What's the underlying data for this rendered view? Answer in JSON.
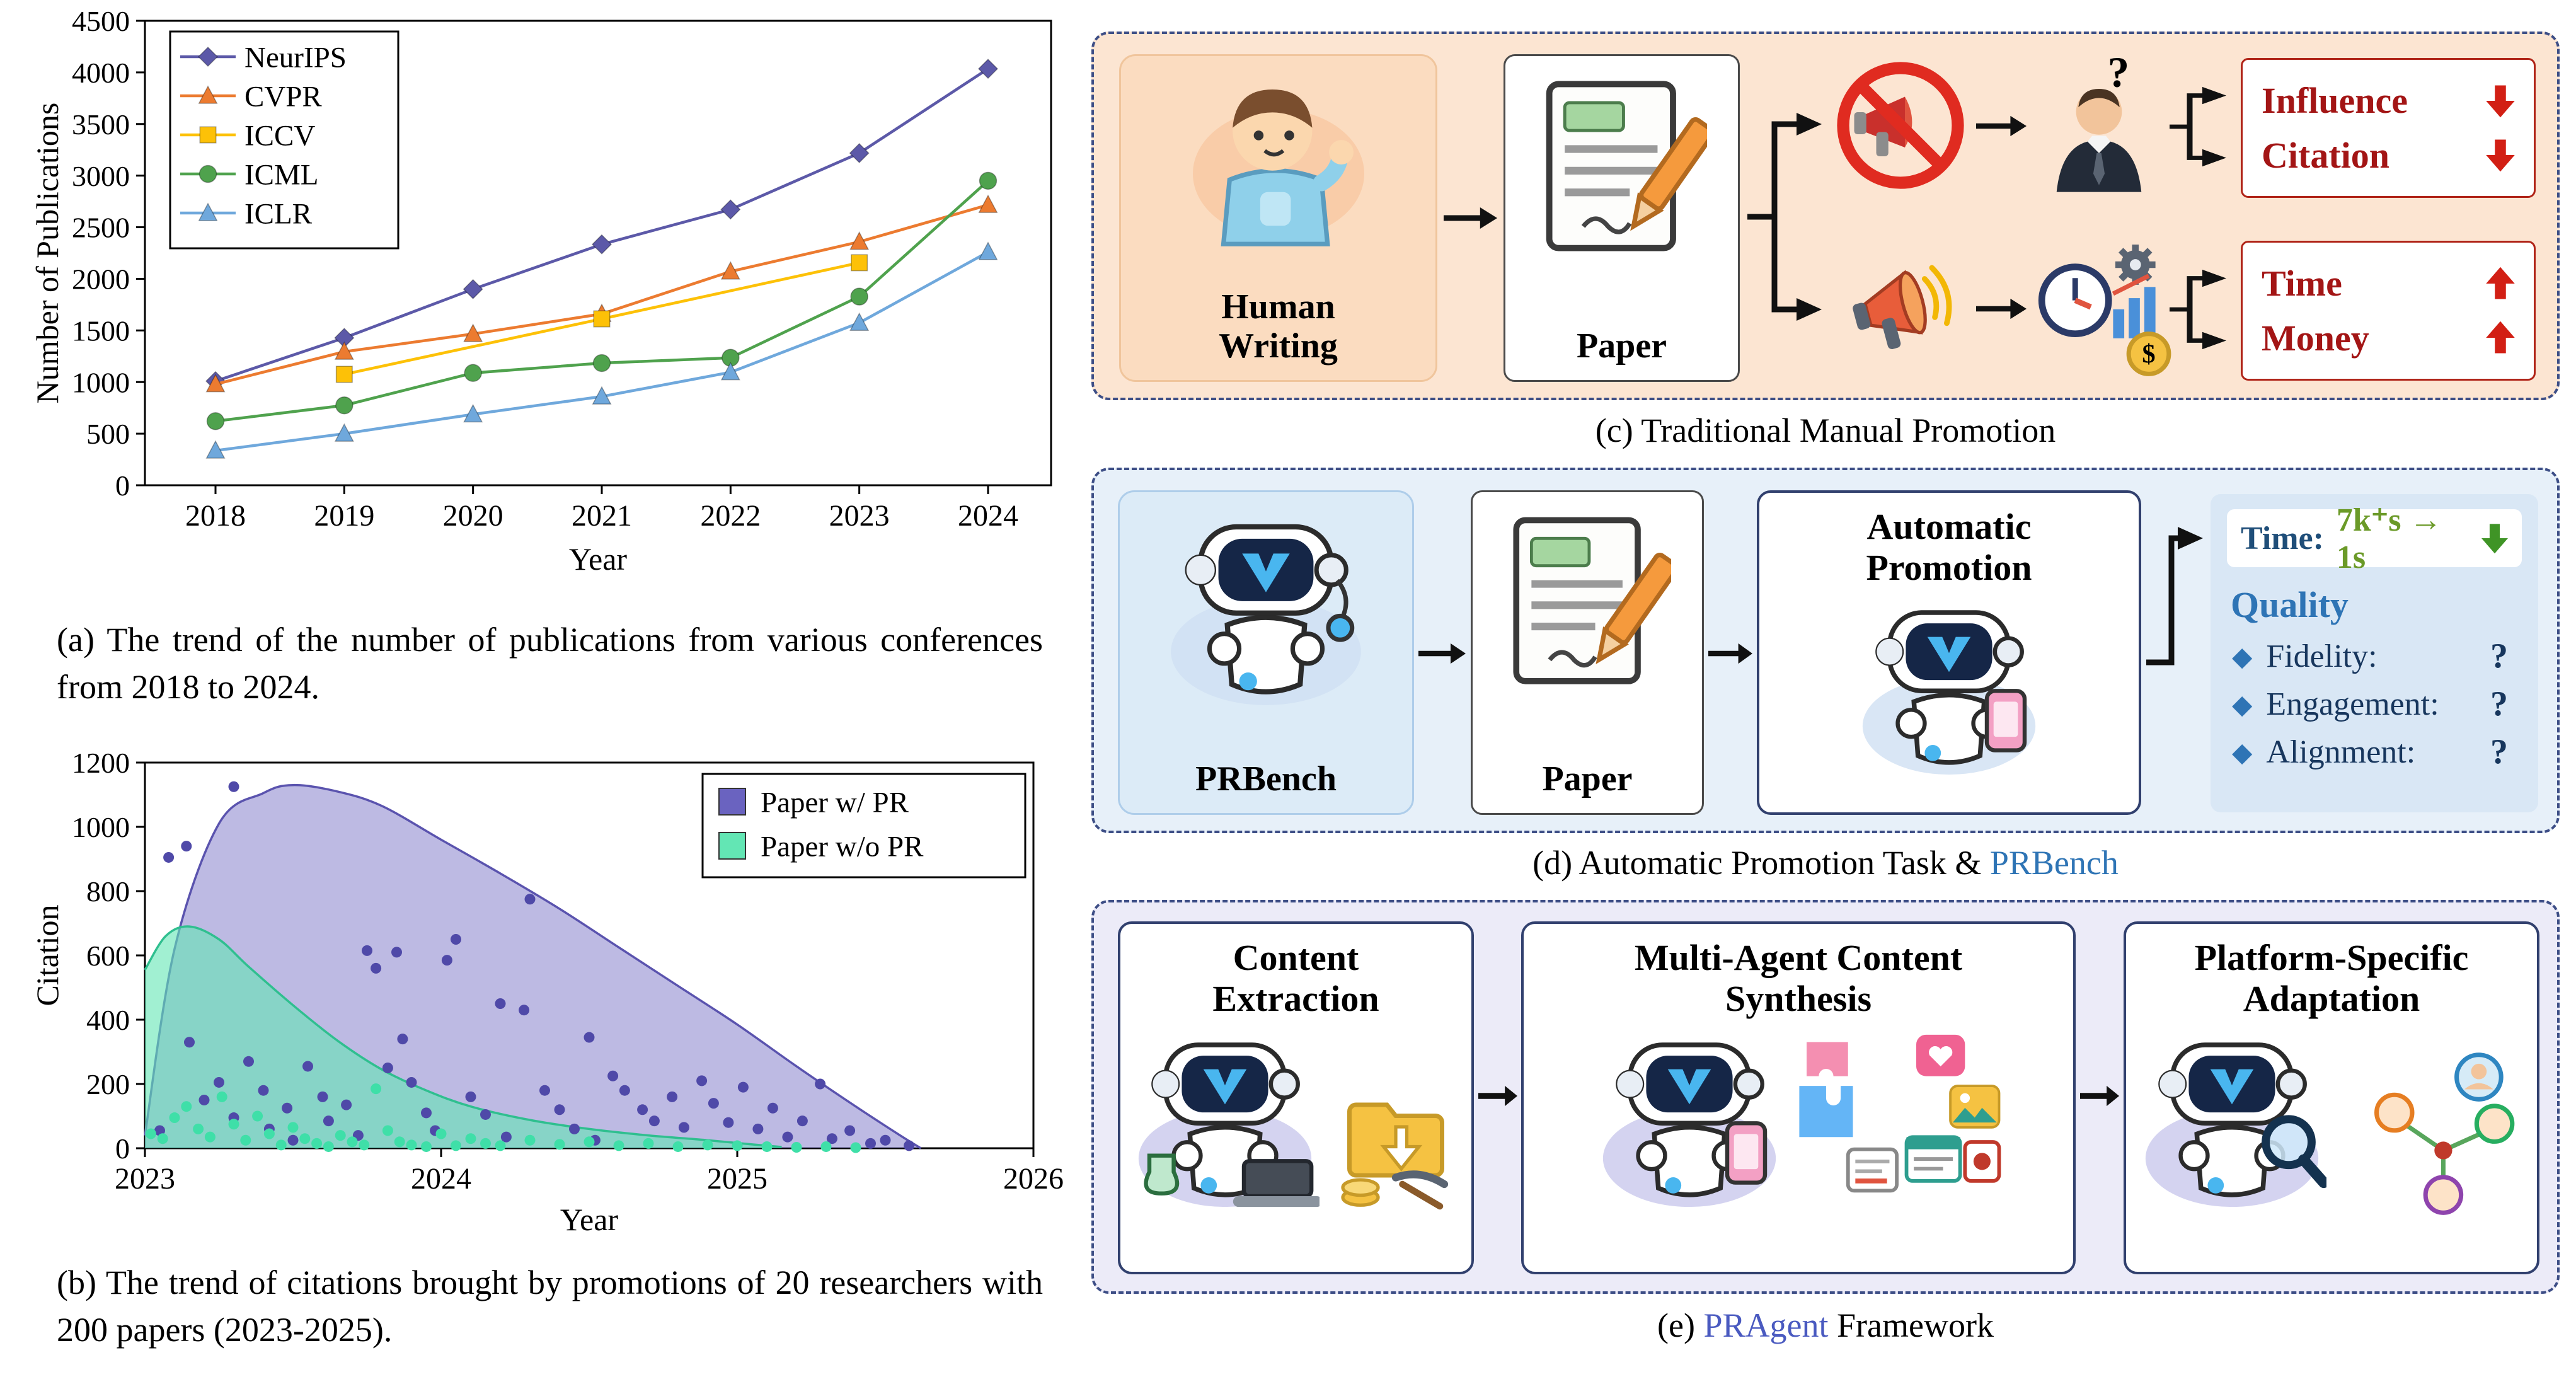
{
  "chart_data": [
    {
      "id": "publications",
      "type": "line",
      "title": "",
      "xlabel": "Year",
      "ylabel": "Number of Publications",
      "xticks": [
        2018,
        2019,
        2020,
        2021,
        2022,
        2023,
        2024
      ],
      "ylim": [
        0,
        4500
      ],
      "ytick_step": 500,
      "grid": false,
      "legend_position": "top-left",
      "series": [
        {
          "name": "NeurIPS",
          "marker": "diamond",
          "color": "#5c59a8",
          "points": [
            [
              2018,
              1009
            ],
            [
              2019,
              1428
            ],
            [
              2020,
              1900
            ],
            [
              2021,
              2334
            ],
            [
              2022,
              2672
            ],
            [
              2023,
              3218
            ],
            [
              2024,
              4035
            ]
          ]
        },
        {
          "name": "CVPR",
          "marker": "triangle",
          "color": "#ec7b30",
          "points": [
            [
              2018,
              979
            ],
            [
              2019,
              1294
            ],
            [
              2020,
              1466
            ],
            [
              2021,
              1660
            ],
            [
              2022,
              2071
            ],
            [
              2023,
              2359
            ],
            [
              2024,
              2716
            ]
          ]
        },
        {
          "name": "ICCV",
          "marker": "square",
          "color": "#fdc107",
          "points": [
            [
              2019,
              1075
            ],
            [
              2021,
              1612
            ],
            [
              2023,
              2156
            ]
          ]
        },
        {
          "name": "ICML",
          "marker": "circle",
          "color": "#4fa24d",
          "points": [
            [
              2018,
              621
            ],
            [
              2019,
              774
            ],
            [
              2020,
              1088
            ],
            [
              2021,
              1184
            ],
            [
              2022,
              1235
            ],
            [
              2023,
              1828
            ],
            [
              2024,
              2950
            ]
          ]
        },
        {
          "name": "ICLR",
          "marker": "triangle",
          "color": "#6fa8dc",
          "points": [
            [
              2018,
              336
            ],
            [
              2019,
              500
            ],
            [
              2020,
              687
            ],
            [
              2021,
              860
            ],
            [
              2022,
              1095
            ],
            [
              2023,
              1574
            ],
            [
              2024,
              2260
            ]
          ]
        }
      ]
    },
    {
      "id": "citations",
      "type": "scatter-area",
      "title": "",
      "xlabel": "Year",
      "ylabel": "Citation",
      "xticks": [
        2023,
        2024,
        2025,
        2026
      ],
      "ylim": [
        0,
        1200
      ],
      "ytick_step": 200,
      "grid": false,
      "legend_position": "top-right",
      "series": [
        {
          "name": "Paper w/ PR",
          "color": "#5a53ae",
          "fill": "#8781cc",
          "fill_opacity": 0.55,
          "dot": "#4f49a8",
          "swatch": "#6a63c0",
          "curve": [
            [
              2023.0,
              40
            ],
            [
              2023.1,
              620
            ],
            [
              2023.25,
              1010
            ],
            [
              2023.4,
              1105
            ],
            [
              2023.5,
              1130
            ],
            [
              2023.65,
              1110
            ],
            [
              2023.8,
              1065
            ],
            [
              2024.0,
              960
            ],
            [
              2024.2,
              855
            ],
            [
              2024.4,
              745
            ],
            [
              2024.6,
              625
            ],
            [
              2024.8,
              505
            ],
            [
              2025.0,
              385
            ],
            [
              2025.2,
              255
            ],
            [
              2025.4,
              130
            ],
            [
              2025.55,
              40
            ],
            [
              2025.62,
              0
            ]
          ],
          "points": [
            [
              2023.05,
              55
            ],
            [
              2023.08,
              905
            ],
            [
              2023.14,
              940
            ],
            [
              2023.3,
              1125
            ],
            [
              2023.15,
              330
            ],
            [
              2023.2,
              150
            ],
            [
              2023.25,
              205
            ],
            [
              2023.3,
              95
            ],
            [
              2023.35,
              270
            ],
            [
              2023.4,
              180
            ],
            [
              2023.42,
              60
            ],
            [
              2023.48,
              125
            ],
            [
              2023.5,
              25
            ],
            [
              2023.55,
              255
            ],
            [
              2023.6,
              160
            ],
            [
              2023.62,
              85
            ],
            [
              2023.68,
              135
            ],
            [
              2023.72,
              40
            ],
            [
              2023.75,
              615
            ],
            [
              2023.78,
              560
            ],
            [
              2023.82,
              250
            ],
            [
              2023.85,
              610
            ],
            [
              2023.87,
              340
            ],
            [
              2023.9,
              205
            ],
            [
              2023.95,
              110
            ],
            [
              2023.98,
              55
            ],
            [
              2024.02,
              585
            ],
            [
              2024.05,
              650
            ],
            [
              2024.1,
              160
            ],
            [
              2024.15,
              105
            ],
            [
              2024.2,
              450
            ],
            [
              2024.22,
              35
            ],
            [
              2024.28,
              430
            ],
            [
              2024.3,
              775
            ],
            [
              2024.35,
              180
            ],
            [
              2024.4,
              120
            ],
            [
              2024.45,
              60
            ],
            [
              2024.5,
              345
            ],
            [
              2024.52,
              25
            ],
            [
              2024.58,
              225
            ],
            [
              2024.62,
              180
            ],
            [
              2024.68,
              120
            ],
            [
              2024.72,
              85
            ],
            [
              2024.78,
              160
            ],
            [
              2024.82,
              65
            ],
            [
              2024.88,
              210
            ],
            [
              2024.92,
              140
            ],
            [
              2024.97,
              80
            ],
            [
              2025.02,
              190
            ],
            [
              2025.07,
              60
            ],
            [
              2025.12,
              125
            ],
            [
              2025.17,
              35
            ],
            [
              2025.22,
              85
            ],
            [
              2025.28,
              200
            ],
            [
              2025.32,
              30
            ],
            [
              2025.38,
              55
            ],
            [
              2025.45,
              15
            ],
            [
              2025.5,
              25
            ],
            [
              2025.58,
              8
            ]
          ]
        },
        {
          "name": "Paper w/o PR",
          "color": "#2fbf8f",
          "fill": "#63e6b4",
          "fill_opacity": 0.6,
          "dot": "#3fdfa8",
          "swatch": "#63e6b4",
          "curve": [
            [
              2023.0,
              555
            ],
            [
              2023.07,
              660
            ],
            [
              2023.15,
              690
            ],
            [
              2023.25,
              650
            ],
            [
              2023.35,
              565
            ],
            [
              2023.5,
              445
            ],
            [
              2023.65,
              335
            ],
            [
              2023.8,
              245
            ],
            [
              2023.95,
              180
            ],
            [
              2024.1,
              130
            ],
            [
              2024.3,
              88
            ],
            [
              2024.5,
              60
            ],
            [
              2024.7,
              40
            ],
            [
              2024.9,
              25
            ],
            [
              2025.05,
              12
            ],
            [
              2025.15,
              4
            ]
          ],
          "points": [
            [
              2023.02,
              45
            ],
            [
              2023.06,
              30
            ],
            [
              2023.1,
              95
            ],
            [
              2023.14,
              130
            ],
            [
              2023.18,
              60
            ],
            [
              2023.22,
              35
            ],
            [
              2023.26,
              160
            ],
            [
              2023.3,
              75
            ],
            [
              2023.34,
              25
            ],
            [
              2023.38,
              100
            ],
            [
              2023.42,
              45
            ],
            [
              2023.46,
              10
            ],
            [
              2023.5,
              65
            ],
            [
              2023.54,
              30
            ],
            [
              2023.58,
              15
            ],
            [
              2023.62,
              5
            ],
            [
              2023.66,
              40
            ],
            [
              2023.7,
              20
            ],
            [
              2023.74,
              10
            ],
            [
              2023.78,
              185
            ],
            [
              2023.82,
              55
            ],
            [
              2023.86,
              20
            ],
            [
              2023.9,
              10
            ],
            [
              2023.95,
              5
            ],
            [
              2024.0,
              45
            ],
            [
              2024.05,
              8
            ],
            [
              2024.1,
              30
            ],
            [
              2024.15,
              15
            ],
            [
              2024.2,
              8
            ],
            [
              2024.3,
              25
            ],
            [
              2024.4,
              12
            ],
            [
              2024.5,
              20
            ],
            [
              2024.6,
              8
            ],
            [
              2024.7,
              15
            ],
            [
              2024.8,
              5
            ],
            [
              2024.9,
              10
            ],
            [
              2025.0,
              8
            ],
            [
              2025.1,
              5
            ],
            [
              2025.2,
              3
            ],
            [
              2025.3,
              5
            ],
            [
              2025.4,
              2
            ]
          ]
        }
      ]
    }
  ],
  "captions": {
    "a": "(a) The trend of the number of publications from various conferences from 2018 to 2024.",
    "b": "(b) The trend of citations brought by promotions of 20 researchers with 200 papers (2023-2025).",
    "c": "(c) Traditional Manual Promotion",
    "d_prefix": "(d) Automatic Promotion Task & ",
    "d_brand": "PRBench",
    "e_prefix": "(e) ",
    "e_brand": "PRAgent",
    "e_suffix": " Framework"
  },
  "panel_c": {
    "human_line1": "Human",
    "human_line2": "Writing",
    "paper_label": "Paper",
    "top_outcomes": [
      {
        "label": "Influence",
        "direction": "down"
      },
      {
        "label": "Citation",
        "direction": "down"
      }
    ],
    "bottom_outcomes": [
      {
        "label": "Time",
        "direction": "up"
      },
      {
        "label": "Money",
        "direction": "up"
      }
    ]
  },
  "panel_d": {
    "robot_label": "PRBench",
    "paper_label": "Paper",
    "promo_line1": "Automatic",
    "promo_line2": "Promotion",
    "time_label": "Time:",
    "time_value": "7k⁺s → 1s",
    "quality_title": "Quality",
    "bullet": "◆",
    "quality_items": [
      {
        "label": "Fidelity:",
        "value": "?"
      },
      {
        "label": "Engagement:",
        "value": "?"
      },
      {
        "label": "Alignment:",
        "value": "?"
      }
    ]
  },
  "panel_e": {
    "stages": [
      {
        "line1": "Content",
        "line2": "Extraction"
      },
      {
        "line1": "Multi-Agent Content",
        "line2": "Synthesis"
      },
      {
        "line1": "Platform-Specific",
        "line2": "Adaptation"
      }
    ]
  },
  "colors": {
    "accent_blue": "#2e74b5",
    "accent_purple": "#4a5ac0",
    "negative_red": "#d21f14",
    "positive_green": "#3f9426",
    "panel_c_bg": "#fce5d2",
    "panel_d_bg": "#e7f0f9",
    "panel_e_bg": "#ecebf8"
  }
}
